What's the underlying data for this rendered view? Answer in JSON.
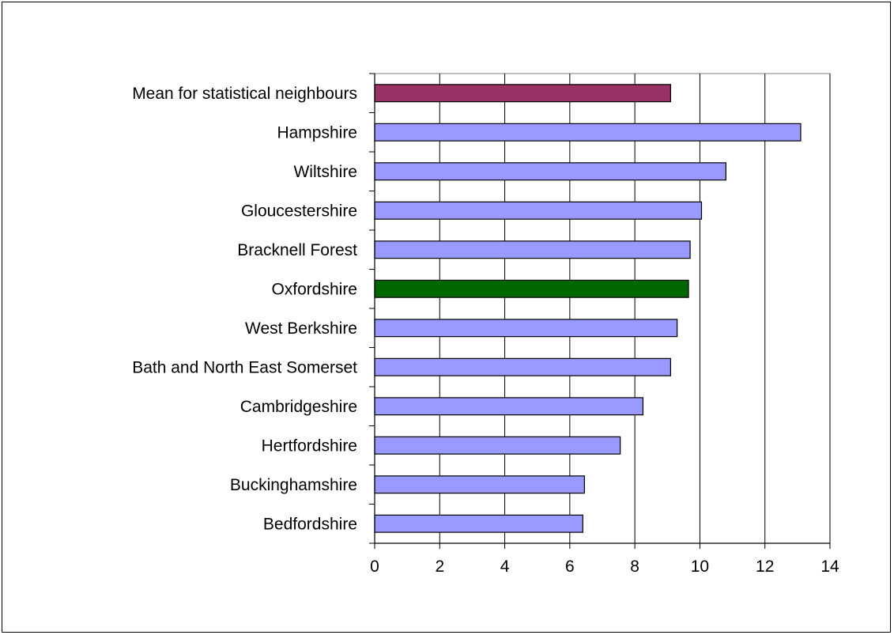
{
  "chart_data": {
    "type": "bar",
    "orientation": "horizontal",
    "title": "",
    "xlabel": "",
    "ylabel": "",
    "xlim": [
      0,
      14
    ],
    "x_ticks": [
      0,
      2,
      4,
      6,
      8,
      10,
      12,
      14
    ],
    "grid": "vertical major gridlines",
    "categories": [
      "Mean for statistical neighbours",
      "Hampshire",
      "Wiltshire",
      "Gloucestershire",
      "Bracknell Forest",
      "Oxfordshire",
      "West Berkshire",
      "Bath and North East Somerset",
      "Cambridgeshire",
      "Hertfordshire",
      "Buckinghamshire",
      "Bedfordshire"
    ],
    "values": [
      9.1,
      13.1,
      10.8,
      10.05,
      9.7,
      9.65,
      9.3,
      9.1,
      8.25,
      7.55,
      6.45,
      6.4
    ],
    "colors": {
      "default_bar": "#9999FF",
      "mean_bar": "#993366",
      "highlight_bar": "#006600",
      "bar_outline": "#000000",
      "gridline": "#000000"
    },
    "highlight": {
      "Mean for statistical neighbours": "mean_bar",
      "Oxfordshire": "highlight_bar"
    }
  }
}
